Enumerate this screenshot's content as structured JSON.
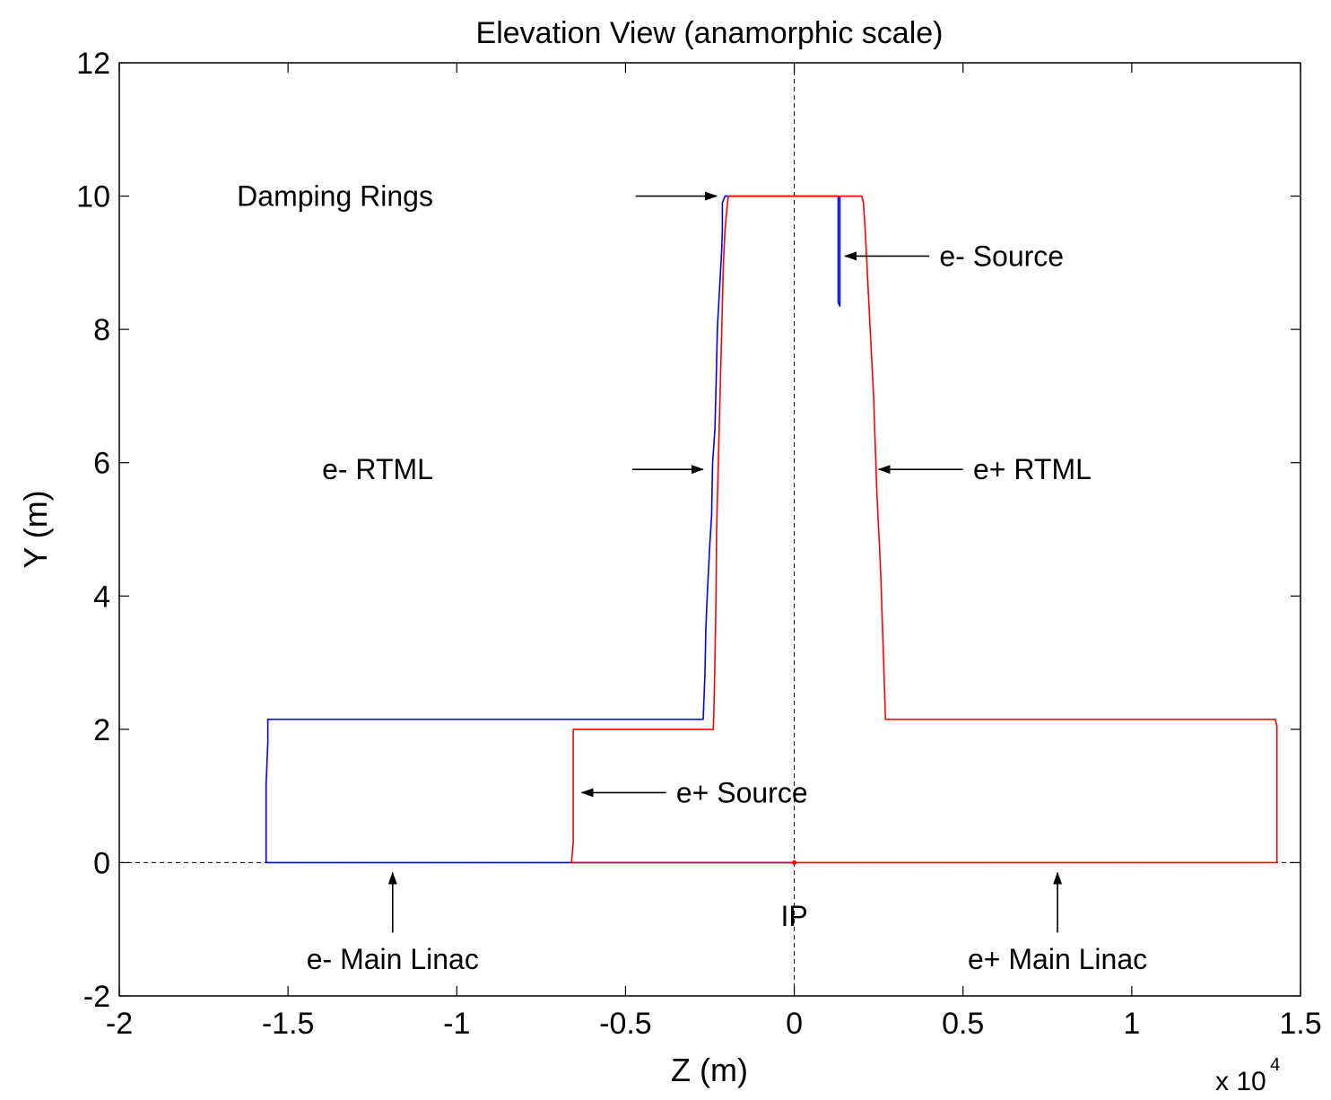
{
  "chart_data": {
    "type": "line",
    "title": "Elevation View (anamorphic scale)",
    "xlabel": "Z (m)",
    "ylabel": "Y (m)",
    "x_multiplier": {
      "base": "x 10",
      "exponent": "4"
    },
    "xlim": [
      -2,
      1.5
    ],
    "ylim": [
      -2,
      12
    ],
    "xticks": [
      -2,
      -1.5,
      -1,
      -0.5,
      0,
      0.5,
      1,
      1.5
    ],
    "xtick_labels": [
      "-2",
      "-1.5",
      "-1",
      "-0.5",
      "0",
      "0.5",
      "1",
      "1.5"
    ],
    "yticks": [
      -2,
      0,
      2,
      4,
      6,
      8,
      10,
      12
    ],
    "ytick_labels": [
      "-2",
      "0",
      "2",
      "4",
      "6",
      "8",
      "10",
      "12"
    ],
    "grid": false,
    "reference_lines": {
      "horizontal_y": 0,
      "vertical_x": 0
    },
    "series": [
      {
        "color": "#0000ff",
        "x": [
          0,
          -1.565,
          -1.565,
          -1.563,
          -1.56,
          -1.56,
          -0.27,
          -0.265,
          -0.262,
          -0.258,
          -0.25,
          -0.245,
          -0.242,
          -0.235,
          -0.23,
          -0.228,
          -0.215,
          -0.213,
          -0.213,
          -0.205,
          -0.205,
          0.13,
          0.13,
          0.135,
          0.135
        ],
        "y": [
          0,
          0,
          1.2,
          1.4,
          1.8,
          2.15,
          2.15,
          2.8,
          3.5,
          4.0,
          4.8,
          5.2,
          6.0,
          6.5,
          7.5,
          8.0,
          9.2,
          9.5,
          9.9,
          10.0,
          10.0,
          10.0,
          8.4,
          8.35,
          10.0
        ]
      },
      {
        "color": "#ff0000",
        "x": [
          0,
          -0.66,
          -0.655,
          -0.655,
          -0.24,
          -0.238,
          -0.235,
          -0.232,
          -0.23,
          -0.225,
          -0.22,
          -0.215,
          -0.21,
          -0.205,
          -0.198,
          -0.195,
          0.2,
          0.205,
          0.21,
          0.215,
          0.225,
          0.235,
          0.245,
          0.255,
          0.265,
          0.27,
          1.425,
          1.43,
          1.43,
          0
        ],
        "y": [
          0,
          0,
          0.3,
          2.0,
          2.0,
          2.3,
          3.0,
          4.0,
          5.0,
          6.0,
          7.0,
          8.0,
          9.0,
          9.5,
          9.9,
          10.0,
          10.0,
          9.9,
          9.5,
          9.0,
          8.0,
          7.0,
          5.5,
          4.5,
          3.0,
          2.15,
          2.15,
          2.05,
          0,
          0
        ]
      }
    ],
    "annotations": [
      {
        "label": "Damping Rings",
        "anchor": "end",
        "text_x": -1.07,
        "text_y": 10.0,
        "arrow_from": [
          -0.47,
          10.0
        ],
        "arrow_to": [
          -0.23,
          10.0
        ]
      },
      {
        "label": "e- Source",
        "anchor": "start",
        "text_x": 0.43,
        "text_y": 9.1,
        "arrow_from": [
          0.4,
          9.1
        ],
        "arrow_to": [
          0.15,
          9.1
        ]
      },
      {
        "label": "e- RTML",
        "anchor": "end",
        "text_x": -1.07,
        "text_y": 5.9,
        "arrow_from": [
          -0.48,
          5.9
        ],
        "arrow_to": [
          -0.27,
          5.9
        ]
      },
      {
        "label": "e+ RTML",
        "anchor": "start",
        "text_x": 0.53,
        "text_y": 5.9,
        "arrow_from": [
          0.5,
          5.9
        ],
        "arrow_to": [
          0.25,
          5.9
        ]
      },
      {
        "label": "e+ Source",
        "anchor": "start",
        "text_x": -0.35,
        "text_y": 1.05,
        "arrow_from": [
          -0.38,
          1.05
        ],
        "arrow_to": [
          -0.63,
          1.05
        ]
      },
      {
        "label": "e- Main Linac",
        "anchor": "middle",
        "text_x": -1.19,
        "text_y": -1.45,
        "arrow_from": [
          -1.19,
          -1.05
        ],
        "arrow_to": [
          -1.19,
          -0.15
        ]
      },
      {
        "label": "e+ Main Linac",
        "anchor": "middle",
        "text_x": 0.78,
        "text_y": -1.45,
        "arrow_from": [
          0.78,
          -1.05
        ],
        "arrow_to": [
          0.78,
          -0.15
        ]
      },
      {
        "label": "IP",
        "anchor": "middle",
        "text_x": 0,
        "text_y": -0.8
      }
    ]
  }
}
